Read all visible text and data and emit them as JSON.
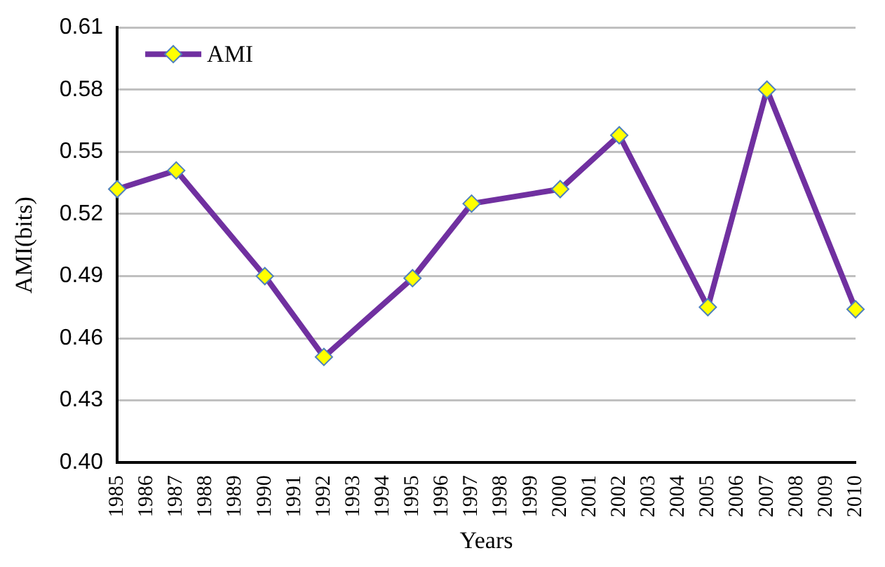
{
  "chart_data": {
    "type": "line",
    "xlabel": "Years",
    "ylabel": "AMI(bits)",
    "categories": [
      "1985",
      "1986",
      "1987",
      "1988",
      "1989",
      "1990",
      "1991",
      "1992",
      "1993",
      "1994",
      "1995",
      "1996",
      "1997",
      "1998",
      "1999",
      "2000",
      "2001",
      "2002",
      "2003",
      "2004",
      "2005",
      "2006",
      "2007",
      "2008",
      "2009",
      "2010"
    ],
    "series": [
      {
        "name": "AMI",
        "color": "#7030a0",
        "values": [
          0.532,
          null,
          0.541,
          null,
          null,
          0.49,
          null,
          0.451,
          null,
          null,
          0.489,
          null,
          0.525,
          null,
          null,
          0.532,
          null,
          0.558,
          null,
          null,
          0.475,
          null,
          0.58,
          null,
          null,
          0.474
        ]
      }
    ],
    "ylim": [
      0.4,
      0.61
    ],
    "yticks": [
      {
        "value": 0.4,
        "label": "0.40"
      },
      0.43,
      0.46,
      0.49,
      0.52,
      0.55,
      0.58,
      0.61
    ],
    "grid": "y",
    "legend": "top left",
    "marker": "diamond",
    "line_style": "solid"
  }
}
